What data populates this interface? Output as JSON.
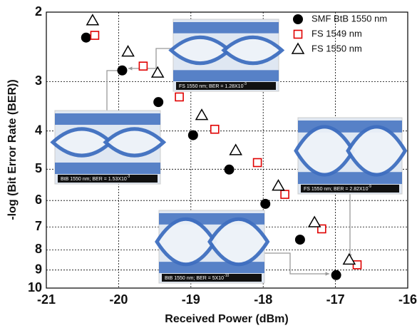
{
  "chart_data": {
    "type": "scatter",
    "xlabel": "Received Power (dBm)",
    "ylabel": "-log (Bit Error Rate (BER))",
    "xlim": [
      -21,
      -16
    ],
    "xticks": [
      -21,
      -20,
      -19,
      -18,
      -17,
      -16
    ],
    "ylim": [
      2,
      10
    ],
    "yticks": [
      2,
      3,
      4,
      5,
      6,
      7,
      8,
      9,
      10
    ],
    "y_log_scale": true,
    "grid": true,
    "series": [
      {
        "name": "SMF BtB 1550 nm",
        "marker": "circle",
        "color": "#000000",
        "x": [
          -20.45,
          -19.95,
          -19.45,
          -18.97,
          -18.47,
          -17.97,
          -17.49,
          -16.99
        ],
        "values": [
          2.32,
          2.81,
          3.38,
          4.1,
          5.01,
          6.12,
          7.54,
          9.27
        ]
      },
      {
        "name": "FS 1549 nm",
        "marker": "square",
        "color": "#e00000",
        "x": [
          -20.33,
          -19.66,
          -19.16,
          -18.67,
          -18.08,
          -17.7,
          -17.19,
          -16.7
        ],
        "values": [
          2.29,
          2.74,
          3.28,
          3.96,
          4.81,
          5.79,
          7.08,
          8.73
        ]
      },
      {
        "name": "FS 1550 nm",
        "marker": "triangle",
        "color": "#000000",
        "x": [
          -20.36,
          -19.87,
          -19.46,
          -18.85,
          -18.38,
          -17.79,
          -17.29,
          -16.81
        ],
        "values": [
          2.1,
          2.52,
          2.85,
          3.65,
          4.48,
          5.51,
          6.82,
          8.48
        ]
      }
    ],
    "insets": [
      {
        "caption": "FS 1550 nm; BER = 1.28X10",
        "exponent": "-3"
      },
      {
        "caption": "BtB 1550 nm; BER = 1.53X10",
        "exponent": "-3"
      },
      {
        "caption": "FS 1550 nm; BER = 2.82X10",
        "exponent": "-9"
      },
      {
        "caption": "BtB 1550 nm; BER = 5X10",
        "exponent": "-10"
      }
    ]
  }
}
